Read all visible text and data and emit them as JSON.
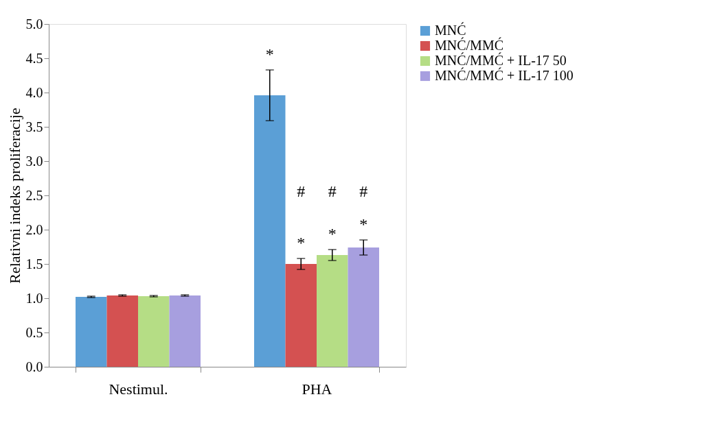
{
  "chart_data": {
    "type": "bar",
    "ylabel": "Relativni indeks proliferacije",
    "categories": [
      "Nestimul.",
      "PHA"
    ],
    "series": [
      {
        "name": "MNĆ",
        "color": "#5b9fd6",
        "values": [
          1.02,
          3.96
        ],
        "errors": [
          0.01,
          0.37
        ]
      },
      {
        "name": "MNĆ/MMĆ",
        "color": "#d45151",
        "values": [
          1.04,
          1.5
        ],
        "errors": [
          0.01,
          0.08
        ]
      },
      {
        "name": "MNĆ/MMĆ + IL-17 50",
        "color": "#b5dd85",
        "values": [
          1.03,
          1.63
        ],
        "errors": [
          0.01,
          0.08
        ]
      },
      {
        "name": "MNĆ/MMĆ + IL-17 100",
        "color": "#a79fdf",
        "values": [
          1.04,
          1.74
        ],
        "errors": [
          0.01,
          0.11
        ]
      }
    ],
    "ylim": [
      0,
      5
    ],
    "yticks": [
      {
        "value": 0,
        "label": "0.0"
      },
      {
        "value": 0.5,
        "label": "0.5"
      },
      {
        "value": 1,
        "label": "1.0"
      },
      {
        "value": 1.5,
        "label": "1.5"
      },
      {
        "value": 2,
        "label": "2.0"
      },
      {
        "value": 2.5,
        "label": "2.5"
      },
      {
        "value": 3,
        "label": "3.0"
      },
      {
        "value": 3.5,
        "label": "3.5"
      },
      {
        "value": 4,
        "label": "4.0"
      },
      {
        "value": 4.5,
        "label": "4.5"
      },
      {
        "value": 5,
        "label": "5.0"
      }
    ],
    "annotations": [
      "*",
      "*",
      "*",
      "*",
      "#",
      "#",
      "#"
    ],
    "grid": false,
    "legend": "right"
  }
}
